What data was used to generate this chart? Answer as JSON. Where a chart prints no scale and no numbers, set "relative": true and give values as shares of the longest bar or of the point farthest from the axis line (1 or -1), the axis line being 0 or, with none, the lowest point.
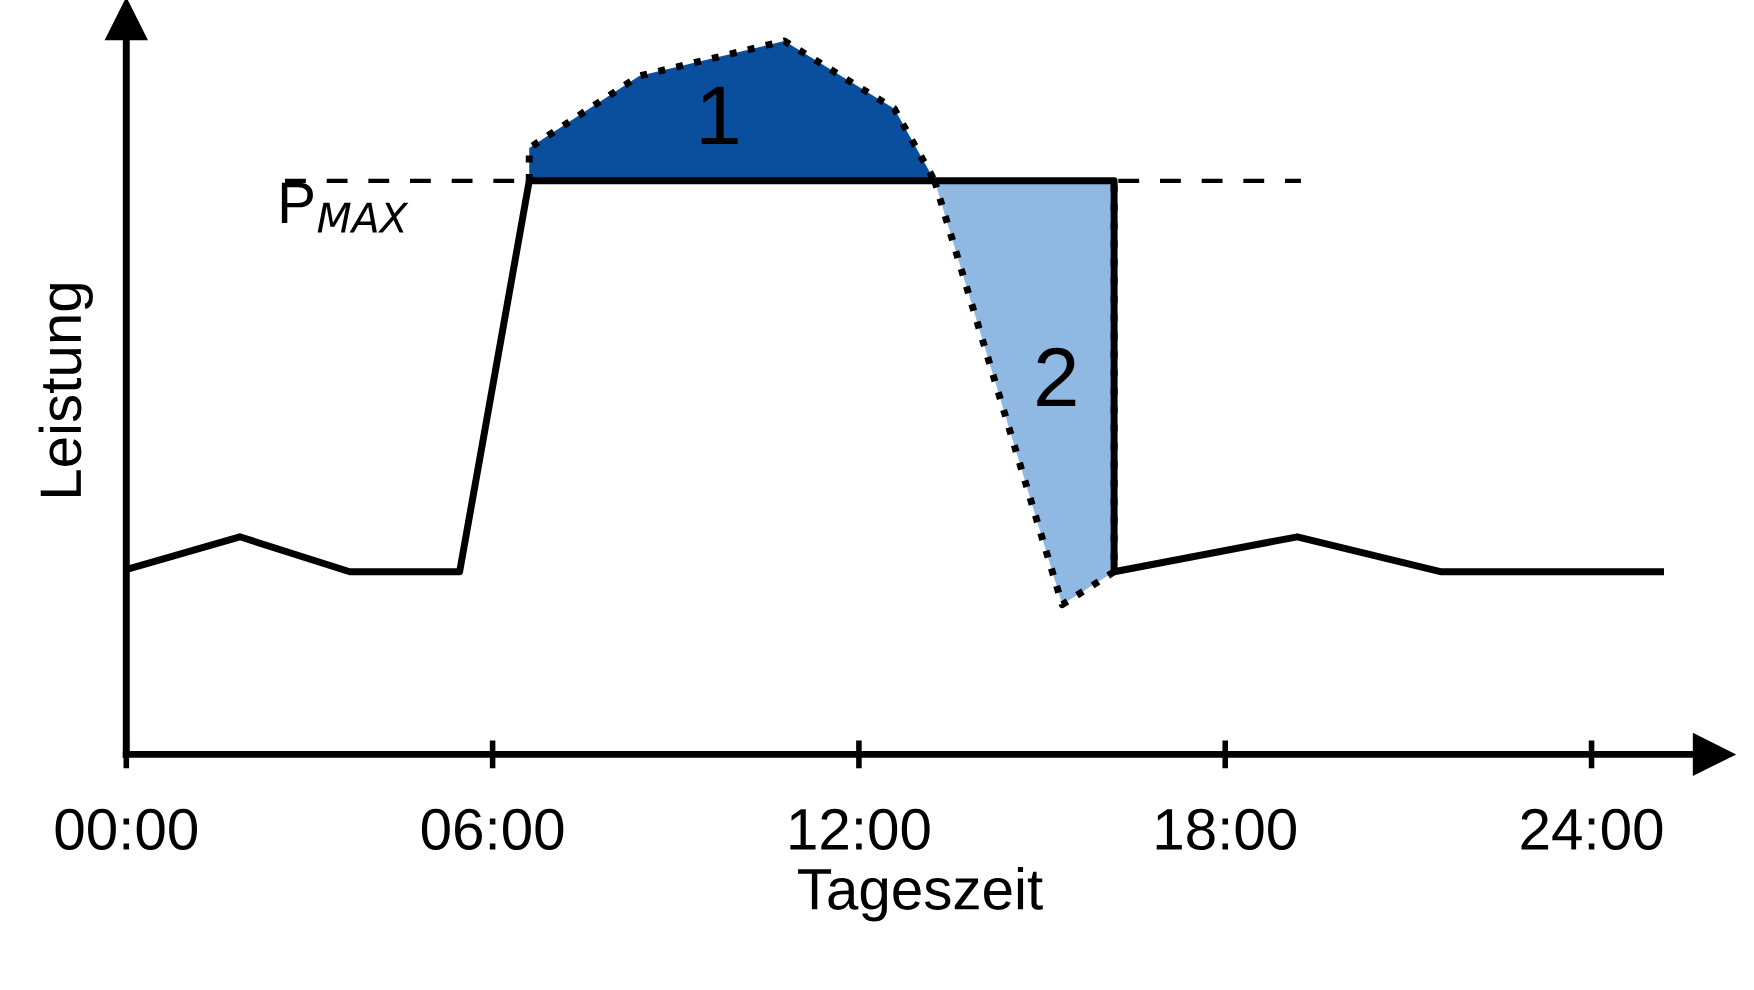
{
  "chart_data": {
    "type": "line",
    "relative": true,
    "xlabel": "Tageszeit",
    "ylabel": "Leistung",
    "xlim": [
      0,
      26
    ],
    "xticks": [
      {
        "value": 0,
        "label": "00:00"
      },
      {
        "value": 6,
        "label": "06:00"
      },
      {
        "value": 12,
        "label": "12:00"
      },
      {
        "value": 18,
        "label": "18:00"
      },
      {
        "value": 24,
        "label": "24:00"
      }
    ],
    "series": [
      {
        "type": "area",
        "color": "#0a4f9e",
        "line_style": "dotted",
        "x": [
          6.6,
          6.6,
          8.4,
          10.78,
          12.58,
          13.24
        ],
        "values": [
          0.804,
          0.85,
          0.951,
          1.0,
          0.905,
          0.804
        ]
      },
      {
        "type": "area",
        "color": "#8fb8e3",
        "line_style": "dotted",
        "x": [
          13.24,
          15.33,
          16.18,
          16.18
        ],
        "values": [
          0.804,
          0.21,
          0.256,
          0.804
        ]
      },
      {
        "color": "#000000",
        "line_style": "solid",
        "x": [
          0,
          1.86,
          3.66,
          5.46,
          6.6,
          16.18,
          16.18,
          19.18,
          21.54,
          25.13
        ],
        "values": [
          0.259,
          0.305,
          0.256,
          0.256,
          0.804,
          0.804,
          0.256,
          0.305,
          0.256,
          0.256
        ]
      }
    ],
    "ref_lines": [
      {
        "axis": "y",
        "value": 0.804,
        "label": "P$_{MAX}$",
        "color": "#000000",
        "line_style": "dashed"
      }
    ],
    "annotations": [
      "1",
      "2"
    ],
    "grid": false
  }
}
